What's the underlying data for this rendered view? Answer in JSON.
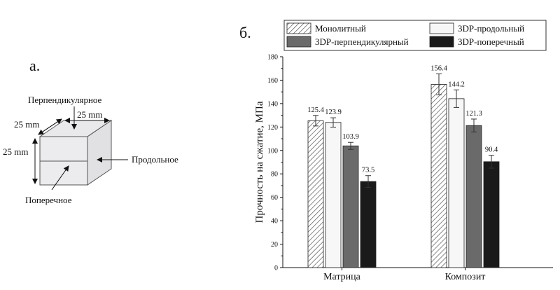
{
  "panel_a": {
    "label": "а.",
    "dimensions": [
      "25 mm",
      "25 mm",
      "25 mm"
    ],
    "directions": {
      "perpendicular": "Перпендикулярное",
      "longitudinal": "Продольное",
      "transverse": "Поперечное"
    }
  },
  "panel_b": {
    "label": "б."
  },
  "chart_data": {
    "type": "bar",
    "title": "",
    "xlabel": "",
    "ylabel": "Прочность на сжатие, МПа",
    "ylim": [
      0,
      180
    ],
    "yticks": [
      0,
      20,
      40,
      60,
      80,
      100,
      120,
      140,
      160,
      180
    ],
    "categories": [
      "Матрица",
      "Композит"
    ],
    "legend_position": "top",
    "series": [
      {
        "name": "Монолитный",
        "values": [
          125.4,
          156.4
        ],
        "labels": [
          "125.4",
          "156.4"
        ],
        "errors": [
          4.5,
          9.0
        ],
        "fill": "hatch",
        "color": "#d8d8d8"
      },
      {
        "name": "3DP-продольный",
        "values": [
          123.9,
          144.2
        ],
        "labels": [
          "123.9",
          "144.2"
        ],
        "errors": [
          4.0,
          7.5
        ],
        "fill": "solid",
        "color": "#f7f7f7"
      },
      {
        "name": "3DP-перпендикулярный",
        "values": [
          103.9,
          121.3
        ],
        "labels": [
          "103.9",
          "121.3"
        ],
        "errors": [
          3.0,
          5.5
        ],
        "fill": "solid",
        "color": "#6a6a6a"
      },
      {
        "name": "3DP-поперечный",
        "values": [
          73.5,
          90.4
        ],
        "labels": [
          "73.5",
          "90.4"
        ],
        "errors": [
          5.0,
          5.5
        ],
        "fill": "solid",
        "color": "#1a1a1a"
      }
    ]
  }
}
